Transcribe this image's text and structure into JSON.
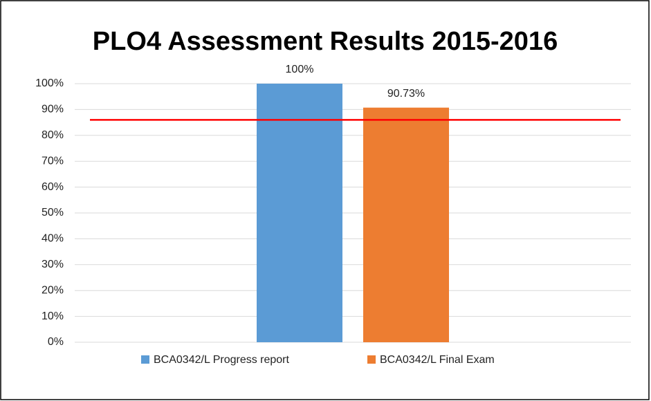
{
  "chart_data": {
    "type": "bar",
    "title": "PLO4 Assessment Results 2015-2016",
    "categories": [
      null
    ],
    "series": [
      {
        "name": "BCA0342/L Progress report",
        "color": "#5b9bd5",
        "values": [
          100
        ],
        "value_labels": [
          "100%"
        ]
      },
      {
        "name": "BCA0342/L Final Exam",
        "color": "#ed7d31",
        "values": [
          90.73
        ],
        "value_labels": [
          "90.73%"
        ]
      }
    ],
    "ylim": [
      0,
      100
    ],
    "yticks": [
      {
        "value": 0,
        "label": "0%"
      },
      {
        "value": 10,
        "label": "10%"
      },
      {
        "value": 20,
        "label": "20%"
      },
      {
        "value": 30,
        "label": "30%"
      },
      {
        "value": 40,
        "label": "40%"
      },
      {
        "value": 50,
        "label": "50%"
      },
      {
        "value": 60,
        "label": "60%"
      },
      {
        "value": 70,
        "label": "70%"
      },
      {
        "value": 80,
        "label": "80%"
      },
      {
        "value": 90,
        "label": "90%"
      },
      {
        "value": 100,
        "label": "100%"
      }
    ],
    "grid": true,
    "reference_line": {
      "value": 86,
      "color": "#ff0000"
    },
    "legend": "bottom"
  }
}
